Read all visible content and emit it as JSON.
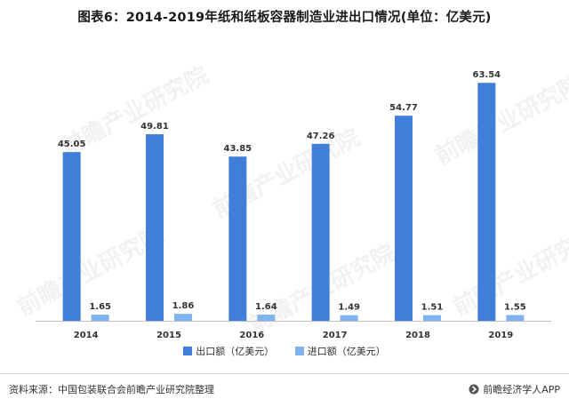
{
  "title": "图表6：2014-2019年纸和纸板容器制造业进出口情况(单位：亿美元)",
  "chart_data": {
    "type": "bar",
    "categories": [
      "2014",
      "2015",
      "2016",
      "2017",
      "2018",
      "2019"
    ],
    "series": [
      {
        "name": "出口额（亿美元）",
        "color": "#3f7fd9",
        "values": [
          45.05,
          49.81,
          43.85,
          47.26,
          54.77,
          63.54
        ]
      },
      {
        "name": "进口额（亿美元）",
        "color": "#7fb3f0",
        "values": [
          1.65,
          1.86,
          1.64,
          1.49,
          1.51,
          1.55
        ]
      }
    ],
    "ylim": [
      0,
      70
    ],
    "grid": false,
    "legend": "bottom"
  },
  "watermark": "前瞻产业研究院",
  "footer": {
    "source": "资料来源：中国包装联合会前瞻产业研究院整理",
    "brand": "前瞻经济学人APP",
    "brand_icon": "forward-arrow-icon"
  }
}
